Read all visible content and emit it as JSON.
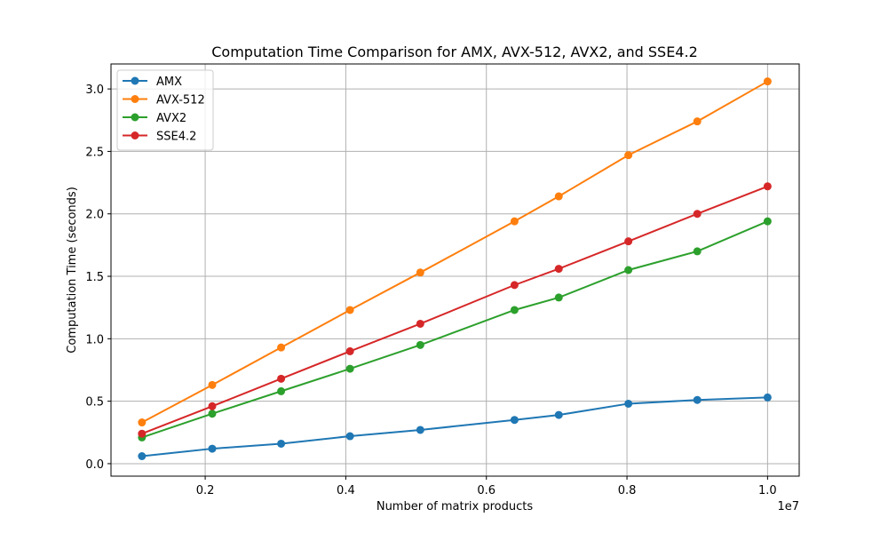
{
  "chart_data": {
    "type": "line",
    "title": "Computation Time Comparison for AMX, AVX-512, AVX2, and SSE4.2",
    "xlabel": "Number of matrix products",
    "ylabel": "Computation Time (seconds)",
    "x_offset_label": "1e7",
    "x_scale": 10000000,
    "xlim": [
      0.066,
      1.045
    ],
    "ylim": [
      -0.1,
      3.2
    ],
    "x_ticks": [
      0.2,
      0.4,
      0.6,
      0.8,
      1.0
    ],
    "x_tick_labels": [
      "0.2",
      "0.4",
      "0.6",
      "0.8",
      "1.0"
    ],
    "y_ticks": [
      0.0,
      0.5,
      1.0,
      1.5,
      2.0,
      2.5,
      3.0
    ],
    "y_tick_labels": [
      "0.0",
      "0.5",
      "1.0",
      "1.5",
      "2.0",
      "2.5",
      "3.0"
    ],
    "grid": true,
    "legend_position": "top-left",
    "x": [
      1100000,
      2100000,
      3080000,
      4060000,
      5060000,
      6400000,
      7030000,
      8020000,
      9000000,
      10000000
    ],
    "series": [
      {
        "name": "AMX",
        "color": "#1f77b4",
        "values": [
          0.06,
          0.12,
          0.16,
          0.22,
          0.27,
          0.35,
          0.39,
          0.48,
          0.51,
          0.53
        ]
      },
      {
        "name": "AVX-512",
        "color": "#ff7f0e",
        "values": [
          0.33,
          0.63,
          0.93,
          1.23,
          1.53,
          1.94,
          2.14,
          2.47,
          2.74,
          3.06
        ]
      },
      {
        "name": "AVX2",
        "color": "#2ca02c",
        "values": [
          0.21,
          0.4,
          0.58,
          0.76,
          0.95,
          1.23,
          1.33,
          1.55,
          1.7,
          1.94
        ]
      },
      {
        "name": "SSE4.2",
        "color": "#d62728",
        "values": [
          0.24,
          0.46,
          0.68,
          0.9,
          1.12,
          1.43,
          1.56,
          1.78,
          2.0,
          2.22
        ]
      }
    ]
  }
}
